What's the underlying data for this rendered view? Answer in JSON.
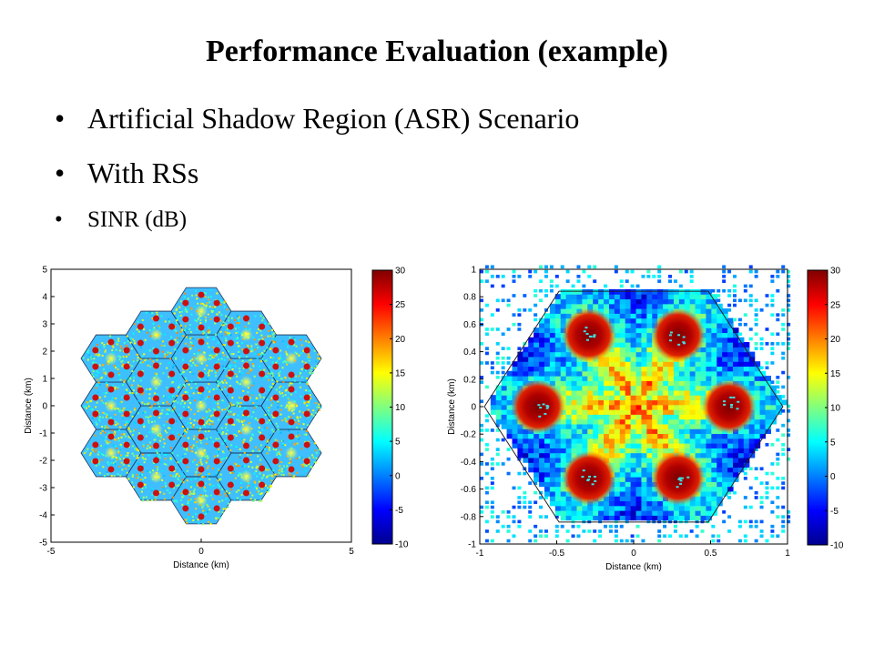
{
  "slide": {
    "title": "Performance Evaluation (example)",
    "bullets": [
      "Artificial Shadow Region (ASR) Scenario",
      "With RSs",
      "SINR (dB)"
    ]
  },
  "chart_data": [
    {
      "type": "heatmap",
      "title": "",
      "description_metric": "SINR (dB)",
      "xlabel": "Distance (km)",
      "ylabel": "Distance (km)",
      "xlim": [
        -5,
        5
      ],
      "ylim": [
        -5,
        5
      ],
      "x_ticks": [
        "-5",
        "0",
        "5"
      ],
      "y_ticks": [
        "5",
        "4",
        "3",
        "2",
        "1",
        "0",
        "-1",
        "-2",
        "-3",
        "-4",
        "-5"
      ],
      "colorbar": {
        "range": [
          -10,
          30
        ],
        "ticks": [
          "30",
          "25",
          "20",
          "15",
          "10",
          "5",
          "0",
          "-5",
          "-10"
        ]
      },
      "layout": "19-cell hexagonal cluster with relay stations"
    },
    {
      "type": "heatmap",
      "title": "",
      "xlabel": "Distance (km)",
      "ylabel": "Distance (km)",
      "xlim": [
        -1,
        1
      ],
      "ylim": [
        -1,
        1
      ],
      "x_ticks": [
        "-1",
        "-0.5",
        "0",
        "0.5",
        "1"
      ],
      "y_ticks": [
        "1",
        "0.8",
        "0.6",
        "0.4",
        "0.2",
        "0",
        "-0.2",
        "-0.4",
        "-0.6",
        "-0.8",
        "-1"
      ],
      "colorbar": {
        "range": [
          -10,
          30
        ],
        "ticks": [
          "30",
          "25",
          "20",
          "15",
          "10",
          "5",
          "0",
          "-5",
          "-10"
        ]
      },
      "relay_stations": [
        [
          -0.29,
          0.52
        ],
        [
          0.29,
          0.52
        ],
        [
          -0.62,
          0.0
        ],
        [
          0.62,
          0.0
        ],
        [
          -0.29,
          -0.52
        ],
        [
          0.29,
          -0.52
        ]
      ],
      "layout": "single hexagonal cell with 6 relay stations"
    }
  ]
}
